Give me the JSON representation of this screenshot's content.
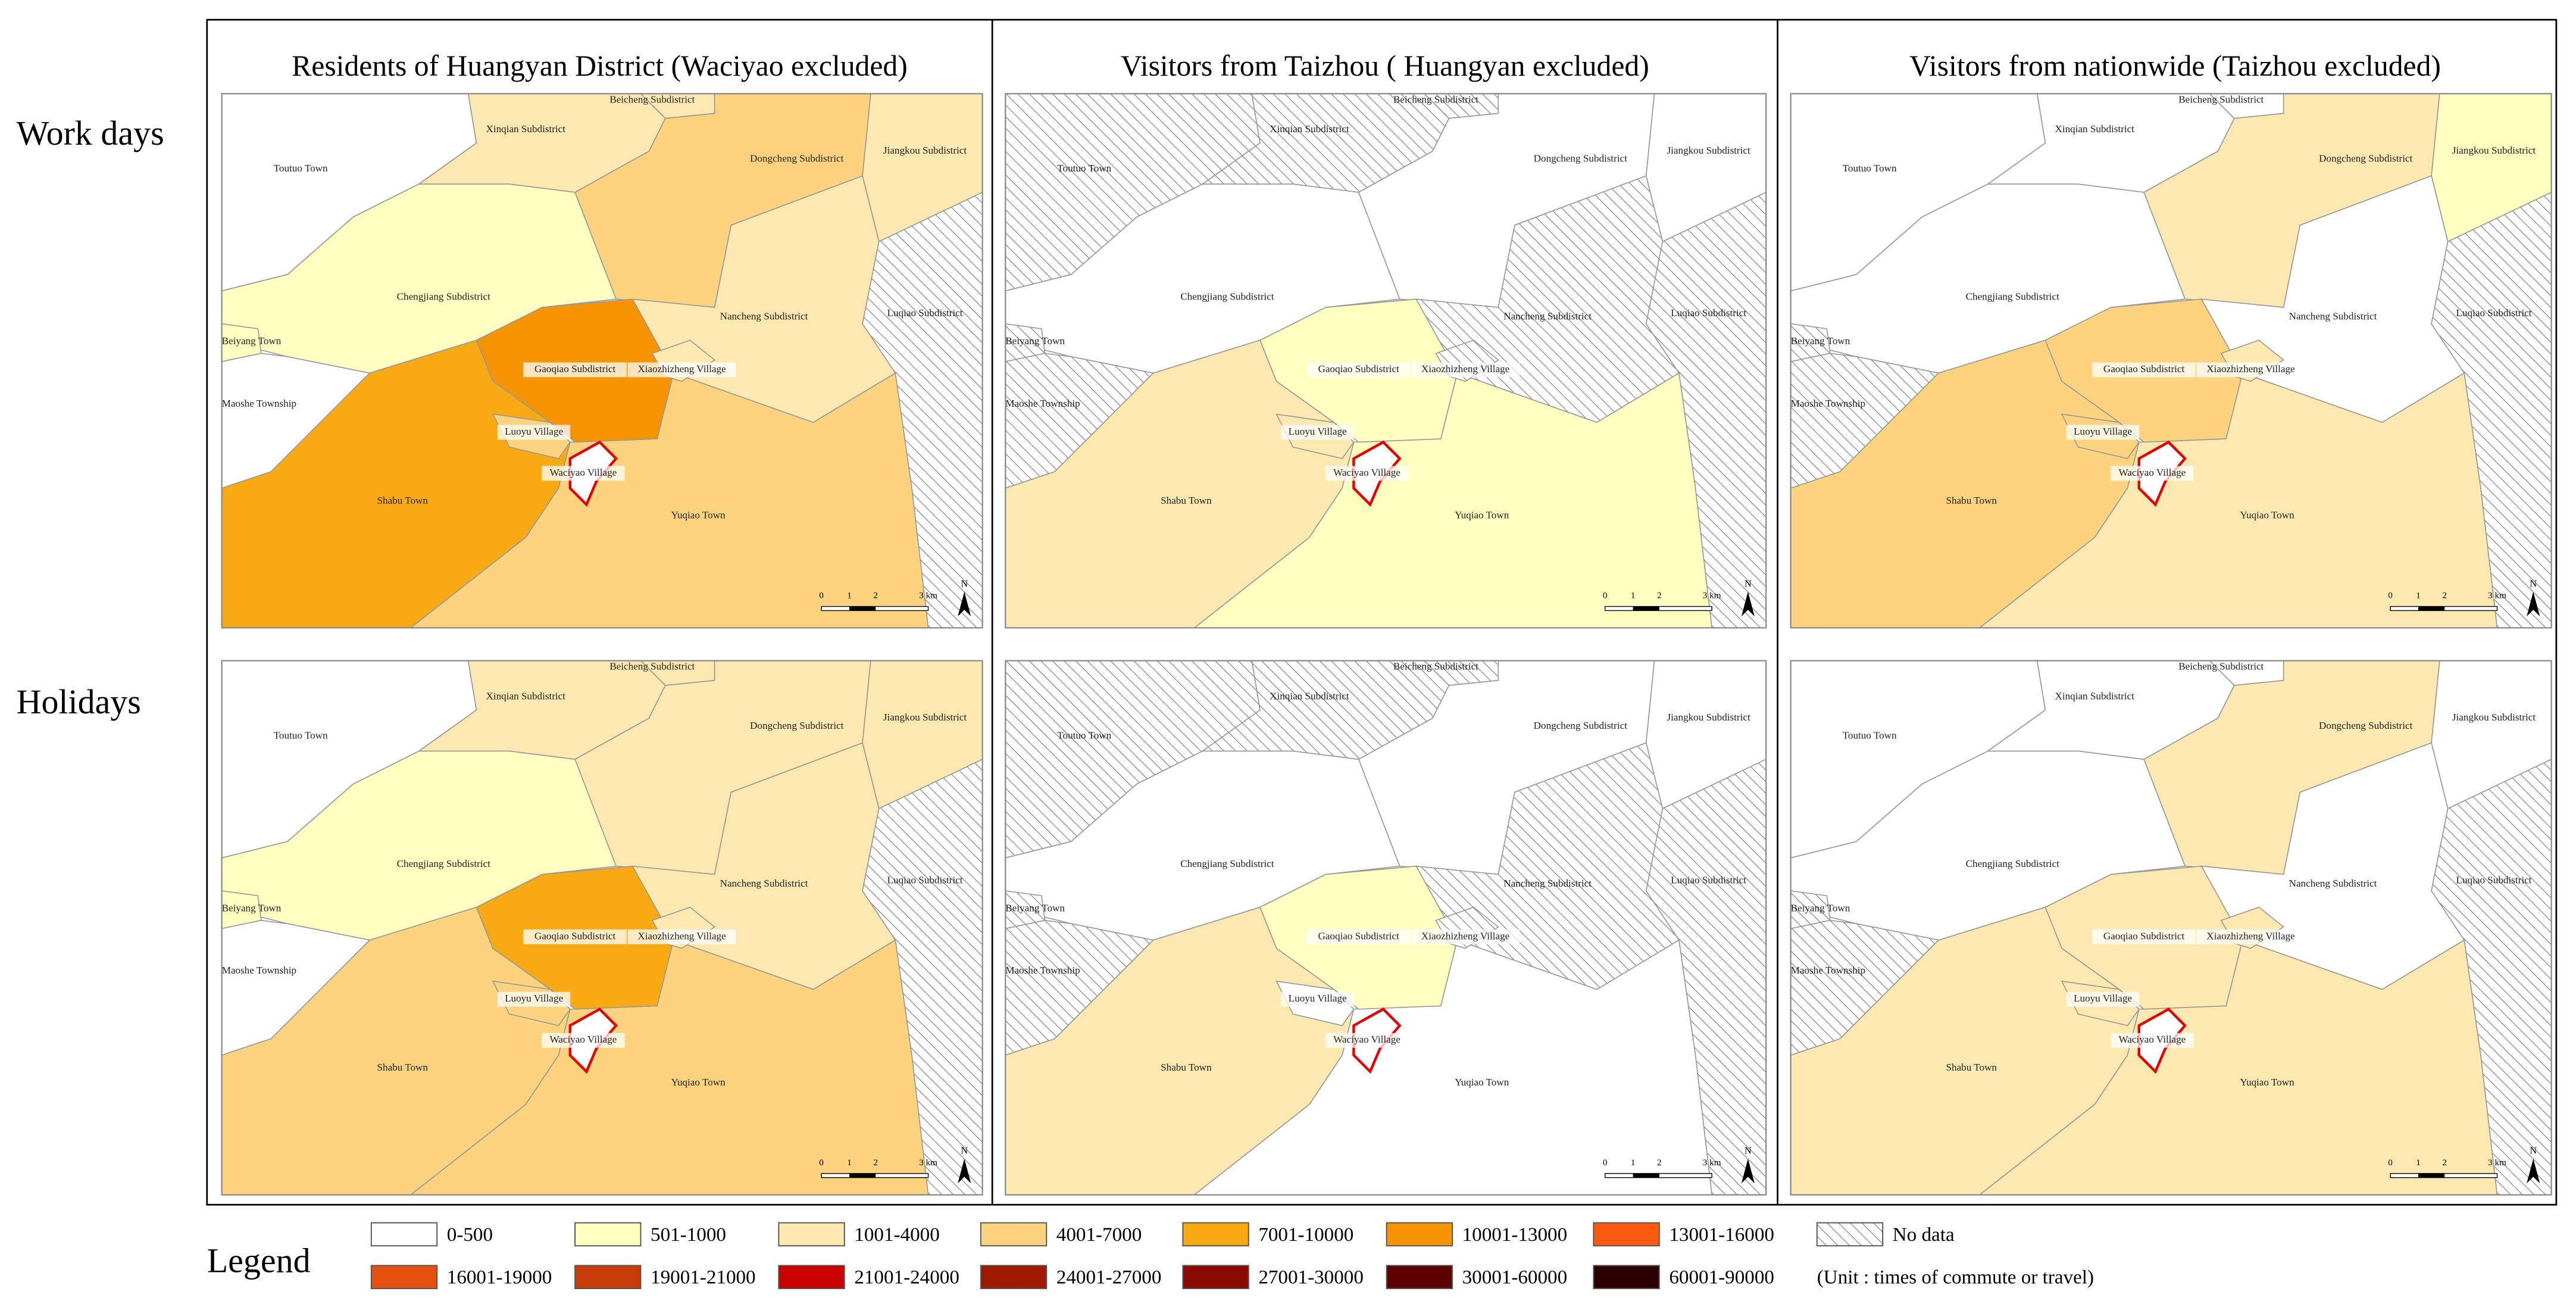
{
  "column_titles": [
    "Residents of Huangyan District (Waciyao excluded)",
    "Visitors from Taizhou ( Huangyan excluded)",
    "Visitors from nationwide (Taizhou excluded)"
  ],
  "row_labels": [
    "Work days",
    "Holidays"
  ],
  "maps": [
    {
      "regions": [
        {
          "name": "Toutuo Town",
          "class": "0-500"
        },
        {
          "name": "Xinqian Subdistrict",
          "class": "1001-4000"
        },
        {
          "name": "Beicheng Subdistrict",
          "class": "1001-4000"
        },
        {
          "name": "Dongcheng Subdistrict",
          "class": "4001-7000"
        },
        {
          "name": "Jiangkou Subdistrict",
          "class": "1001-4000"
        },
        {
          "name": "Chengjiang Subdistrict",
          "class": "501-1000"
        },
        {
          "name": "Beiyang Town",
          "class": "501-1000"
        },
        {
          "name": "Maoshe Township",
          "class": "0-500"
        },
        {
          "name": "Nancheng Subdistrict",
          "class": "1001-4000"
        },
        {
          "name": "Luqiao Subdistrict",
          "class": "No data"
        },
        {
          "name": "Shabu Town",
          "class": "7001-10000"
        },
        {
          "name": "Yuqiao Town",
          "class": "4001-7000"
        },
        {
          "name": "Gaoqiao Subdistrict",
          "class": "10001-13000"
        },
        {
          "name": "Xiaozhizheng Village",
          "class": "1001-4000"
        },
        {
          "name": "Luoyu Village",
          "class": "4001-7000"
        },
        {
          "name": "Waciyao Village",
          "class": "0-500"
        }
      ]
    },
    {
      "regions": [
        {
          "name": "Toutuo Town",
          "class": "No data"
        },
        {
          "name": "Xinqian Subdistrict",
          "class": "No data"
        },
        {
          "name": "Beicheng Subdistrict",
          "class": "No data"
        },
        {
          "name": "Dongcheng Subdistrict",
          "class": "0-500"
        },
        {
          "name": "Jiangkou Subdistrict",
          "class": "0-500"
        },
        {
          "name": "Chengjiang Subdistrict",
          "class": "0-500"
        },
        {
          "name": "Beiyang Town",
          "class": "No data"
        },
        {
          "name": "Maoshe Township",
          "class": "No data"
        },
        {
          "name": "Nancheng Subdistrict",
          "class": "No data"
        },
        {
          "name": "Luqiao Subdistrict",
          "class": "No data"
        },
        {
          "name": "Shabu Town",
          "class": "1001-4000"
        },
        {
          "name": "Yuqiao Town",
          "class": "501-1000"
        },
        {
          "name": "Gaoqiao Subdistrict",
          "class": "501-1000"
        },
        {
          "name": "Xiaozhizheng Village",
          "class": "No data"
        },
        {
          "name": "Luoyu Village",
          "class": "1001-4000"
        },
        {
          "name": "Waciyao Village",
          "class": "0-500"
        }
      ]
    },
    {
      "regions": [
        {
          "name": "Toutuo Town",
          "class": "0-500"
        },
        {
          "name": "Xinqian Subdistrict",
          "class": "0-500"
        },
        {
          "name": "Beicheng Subdistrict",
          "class": "0-500"
        },
        {
          "name": "Dongcheng Subdistrict",
          "class": "1001-4000"
        },
        {
          "name": "Jiangkou Subdistrict",
          "class": "501-1000"
        },
        {
          "name": "Chengjiang Subdistrict",
          "class": "0-500"
        },
        {
          "name": "Beiyang Town",
          "class": "No data"
        },
        {
          "name": "Maoshe Township",
          "class": "No data"
        },
        {
          "name": "Nancheng Subdistrict",
          "class": "0-500"
        },
        {
          "name": "Luqiao Subdistrict",
          "class": "No data"
        },
        {
          "name": "Shabu Town",
          "class": "4001-7000"
        },
        {
          "name": "Yuqiao Town",
          "class": "1001-4000"
        },
        {
          "name": "Gaoqiao Subdistrict",
          "class": "4001-7000"
        },
        {
          "name": "Xiaozhizheng Village",
          "class": "1001-4000"
        },
        {
          "name": "Luoyu Village",
          "class": "4001-7000"
        },
        {
          "name": "Waciyao Village",
          "class": "0-500"
        }
      ]
    },
    {
      "regions": [
        {
          "name": "Toutuo Town",
          "class": "0-500"
        },
        {
          "name": "Xinqian Subdistrict",
          "class": "1001-4000"
        },
        {
          "name": "Beicheng Subdistrict",
          "class": "1001-4000"
        },
        {
          "name": "Dongcheng Subdistrict",
          "class": "1001-4000"
        },
        {
          "name": "Jiangkou Subdistrict",
          "class": "1001-4000"
        },
        {
          "name": "Chengjiang Subdistrict",
          "class": "501-1000"
        },
        {
          "name": "Beiyang Town",
          "class": "501-1000"
        },
        {
          "name": "Maoshe Township",
          "class": "0-500"
        },
        {
          "name": "Nancheng Subdistrict",
          "class": "1001-4000"
        },
        {
          "name": "Luqiao Subdistrict",
          "class": "No data"
        },
        {
          "name": "Shabu Town",
          "class": "4001-7000"
        },
        {
          "name": "Yuqiao Town",
          "class": "4001-7000"
        },
        {
          "name": "Gaoqiao Subdistrict",
          "class": "7001-10000"
        },
        {
          "name": "Xiaozhizheng Village",
          "class": "1001-4000"
        },
        {
          "name": "Luoyu Village",
          "class": "4001-7000"
        },
        {
          "name": "Waciyao Village",
          "class": "0-500"
        }
      ]
    },
    {
      "regions": [
        {
          "name": "Toutuo Town",
          "class": "No data"
        },
        {
          "name": "Xinqian Subdistrict",
          "class": "No data"
        },
        {
          "name": "Beicheng Subdistrict",
          "class": "No data"
        },
        {
          "name": "Dongcheng Subdistrict",
          "class": "0-500"
        },
        {
          "name": "Jiangkou Subdistrict",
          "class": "0-500"
        },
        {
          "name": "Chengjiang Subdistrict",
          "class": "0-500"
        },
        {
          "name": "Beiyang Town",
          "class": "No data"
        },
        {
          "name": "Maoshe Township",
          "class": "No data"
        },
        {
          "name": "Nancheng Subdistrict",
          "class": "No data"
        },
        {
          "name": "Luqiao Subdistrict",
          "class": "No data"
        },
        {
          "name": "Shabu Town",
          "class": "1001-4000"
        },
        {
          "name": "Yuqiao Town",
          "class": "0-500"
        },
        {
          "name": "Gaoqiao Subdistrict",
          "class": "501-1000"
        },
        {
          "name": "Xiaozhizheng Village",
          "class": "No data"
        },
        {
          "name": "Luoyu Village",
          "class": "0-500"
        },
        {
          "name": "Waciyao Village",
          "class": "0-500"
        }
      ]
    },
    {
      "regions": [
        {
          "name": "Toutuo Town",
          "class": "0-500"
        },
        {
          "name": "Xinqian Subdistrict",
          "class": "0-500"
        },
        {
          "name": "Beicheng Subdistrict",
          "class": "0-500"
        },
        {
          "name": "Dongcheng Subdistrict",
          "class": "1001-4000"
        },
        {
          "name": "Jiangkou Subdistrict",
          "class": "0-500"
        },
        {
          "name": "Chengjiang Subdistrict",
          "class": "0-500"
        },
        {
          "name": "Beiyang Town",
          "class": "No data"
        },
        {
          "name": "Maoshe Township",
          "class": "No data"
        },
        {
          "name": "Nancheng Subdistrict",
          "class": "0-500"
        },
        {
          "name": "Luqiao Subdistrict",
          "class": "No data"
        },
        {
          "name": "Shabu Town",
          "class": "1001-4000"
        },
        {
          "name": "Yuqiao Town",
          "class": "1001-4000"
        },
        {
          "name": "Gaoqiao Subdistrict",
          "class": "1001-4000"
        },
        {
          "name": "Xiaozhizheng Village",
          "class": "1001-4000"
        },
        {
          "name": "Luoyu Village",
          "class": "1001-4000"
        },
        {
          "name": "Waciyao Village",
          "class": "0-500"
        }
      ]
    }
  ],
  "scale_bar": {
    "labels": [
      "0",
      "1",
      "2",
      "3 km"
    ],
    "north": "N"
  },
  "legend": {
    "title": "Legend",
    "items": [
      {
        "label": "0-500",
        "color": "#ffffff"
      },
      {
        "label": "501-1000",
        "color": "#ffffc0"
      },
      {
        "label": "1001-4000",
        "color": "#fde9b0"
      },
      {
        "label": "4001-7000",
        "color": "#fdd37e"
      },
      {
        "label": "7001-10000",
        "color": "#f9aa12"
      },
      {
        "label": "10001-13000",
        "color": "#f59400"
      },
      {
        "label": "13001-16000",
        "color": "#fc5a10"
      },
      {
        "label": "16001-19000",
        "color": "#e6500f"
      },
      {
        "label": "19001-21000",
        "color": "#c83c0a"
      },
      {
        "label": "21001-24000",
        "color": "#c80000"
      },
      {
        "label": "24001-27000",
        "color": "#a01a00"
      },
      {
        "label": "27001-30000",
        "color": "#8a0a00"
      },
      {
        "label": "30001-60000",
        "color": "#5c0000"
      },
      {
        "label": "60001-90000",
        "color": "#2a0000"
      }
    ],
    "no_data": "No data",
    "unit": "(Unit : times of commute or travel)"
  }
}
